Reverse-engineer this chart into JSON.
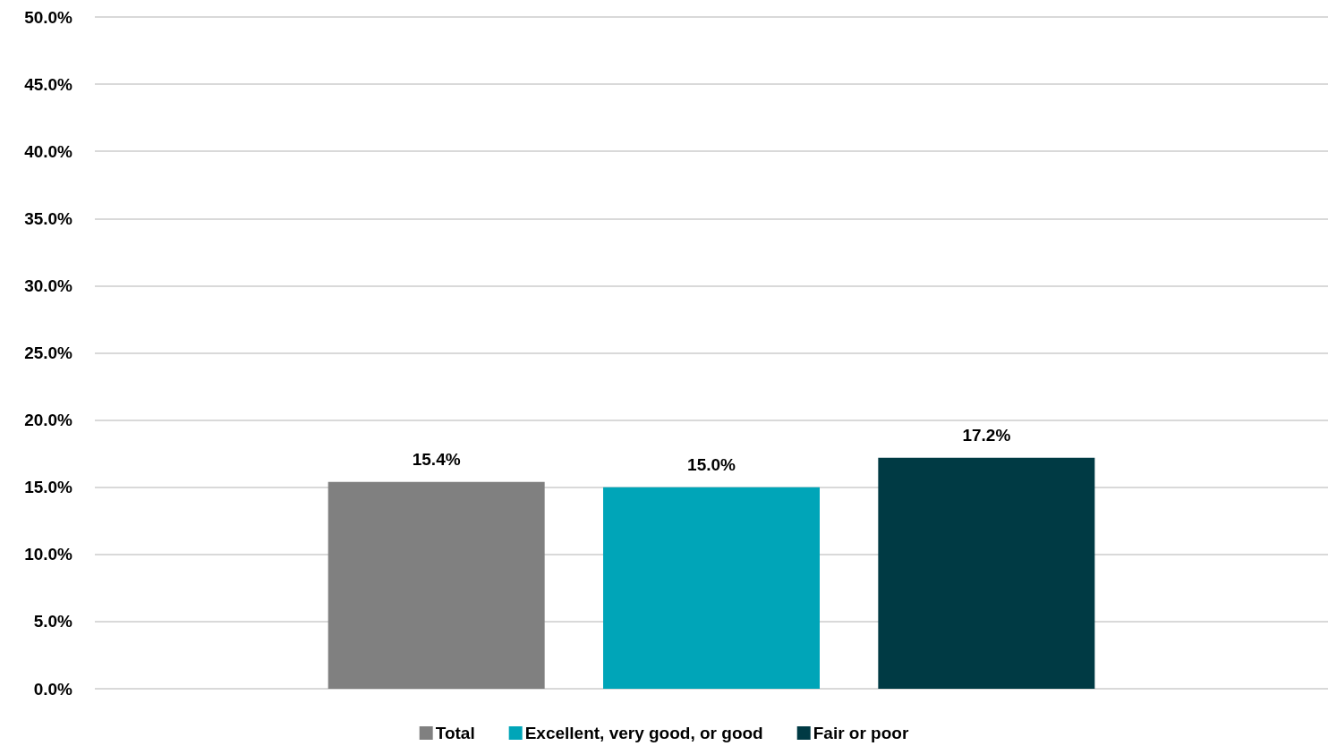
{
  "chart_data": {
    "type": "bar",
    "categories": [
      null
    ],
    "series": [
      {
        "name": "Total",
        "color": "#808080",
        "values": [
          15.4
        ],
        "value_labels": [
          "15.4%"
        ]
      },
      {
        "name": "Excellent, very good, or good",
        "color": "#00a5b8",
        "values": [
          15.0
        ],
        "value_labels": [
          "15.0%"
        ]
      },
      {
        "name": "Fair or poor",
        "color": "#003a44",
        "values": [
          17.2
        ],
        "value_labels": [
          "17.2%"
        ]
      }
    ],
    "ylim": [
      0,
      50
    ],
    "yticks": [
      {
        "value": 0,
        "label": "0.0%"
      },
      {
        "value": 5,
        "label": "5.0%"
      },
      {
        "value": 10,
        "label": "10.0%"
      },
      {
        "value": 15,
        "label": "15.0%"
      },
      {
        "value": 20,
        "label": "20.0%"
      },
      {
        "value": 25,
        "label": "25.0%"
      },
      {
        "value": 30,
        "label": "30.0%"
      },
      {
        "value": 35,
        "label": "35.0%"
      },
      {
        "value": 40,
        "label": "40.0%"
      },
      {
        "value": 45,
        "label": "45.0%"
      },
      {
        "value": 50,
        "label": "50.0%"
      }
    ],
    "grid": "y",
    "legend": "bottom"
  }
}
